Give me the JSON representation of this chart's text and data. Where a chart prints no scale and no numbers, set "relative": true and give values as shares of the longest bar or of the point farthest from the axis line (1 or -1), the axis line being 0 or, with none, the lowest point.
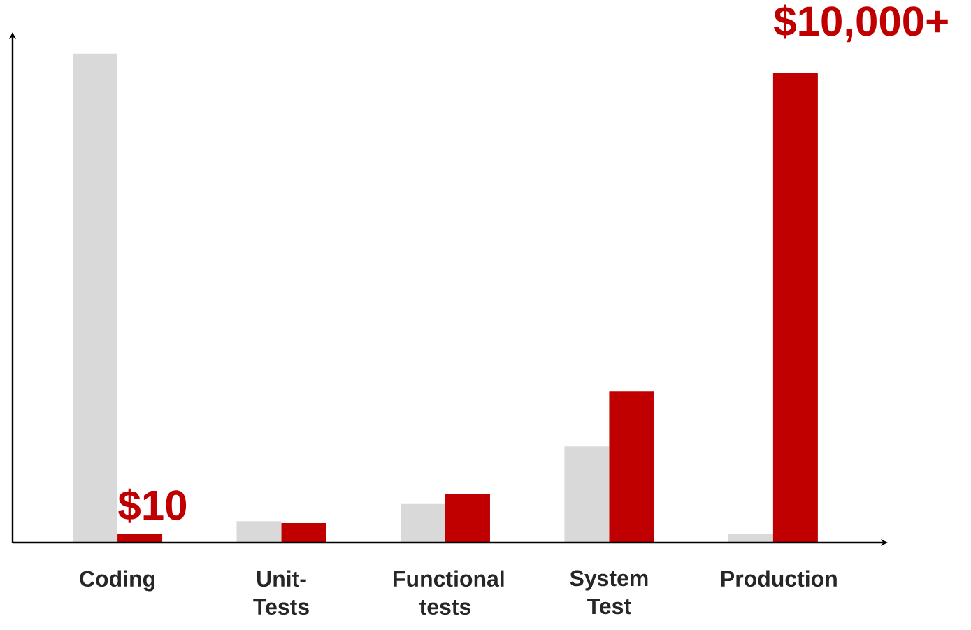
{
  "chart_data": {
    "type": "bar",
    "relative": true,
    "categories": [
      "Coding",
      "Unit-Tests",
      "Functional tests",
      "System Test",
      "Production"
    ],
    "series": [
      {
        "color": "#d9d9d9",
        "values": [
          1,
          0.044,
          0.079,
          0.197,
          0.017
        ]
      },
      {
        "color": "#c00000",
        "values": [
          0.017,
          0.04,
          0.1,
          0.31,
          0.96
        ]
      }
    ],
    "annotations": [
      {
        "text": "$10",
        "x": "Coding",
        "y": 0.017
      },
      {
        "text": "$10,000+",
        "x": "Production",
        "y": 0.96
      }
    ]
  }
}
